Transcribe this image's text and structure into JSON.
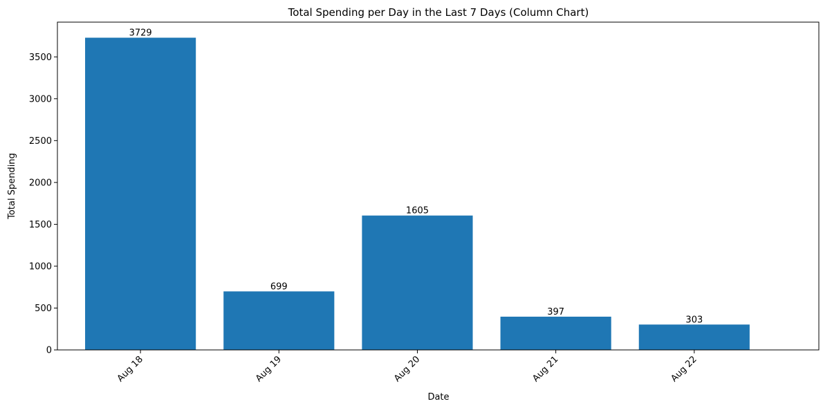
{
  "chart_data": {
    "type": "bar",
    "title": "Total Spending per Day in the Last 7 Days (Column Chart)",
    "xlabel": "Date",
    "ylabel": "Total Spending",
    "categories": [
      "Aug 18",
      "Aug 19",
      "Aug 20",
      "Aug 21",
      "Aug 22"
    ],
    "values": [
      3729,
      699,
      1605,
      397,
      303
    ],
    "data_labels": [
      "3729",
      "699",
      "1605",
      "397",
      "303"
    ],
    "yticks": [
      "0",
      "500",
      "1000",
      "1500",
      "2000",
      "2500",
      "3000",
      "3500"
    ],
    "ylim": [
      0,
      3915
    ],
    "grid": false,
    "legend": "none",
    "bar_color": "#1f77b4",
    "x_tick_rotation": -45
  }
}
